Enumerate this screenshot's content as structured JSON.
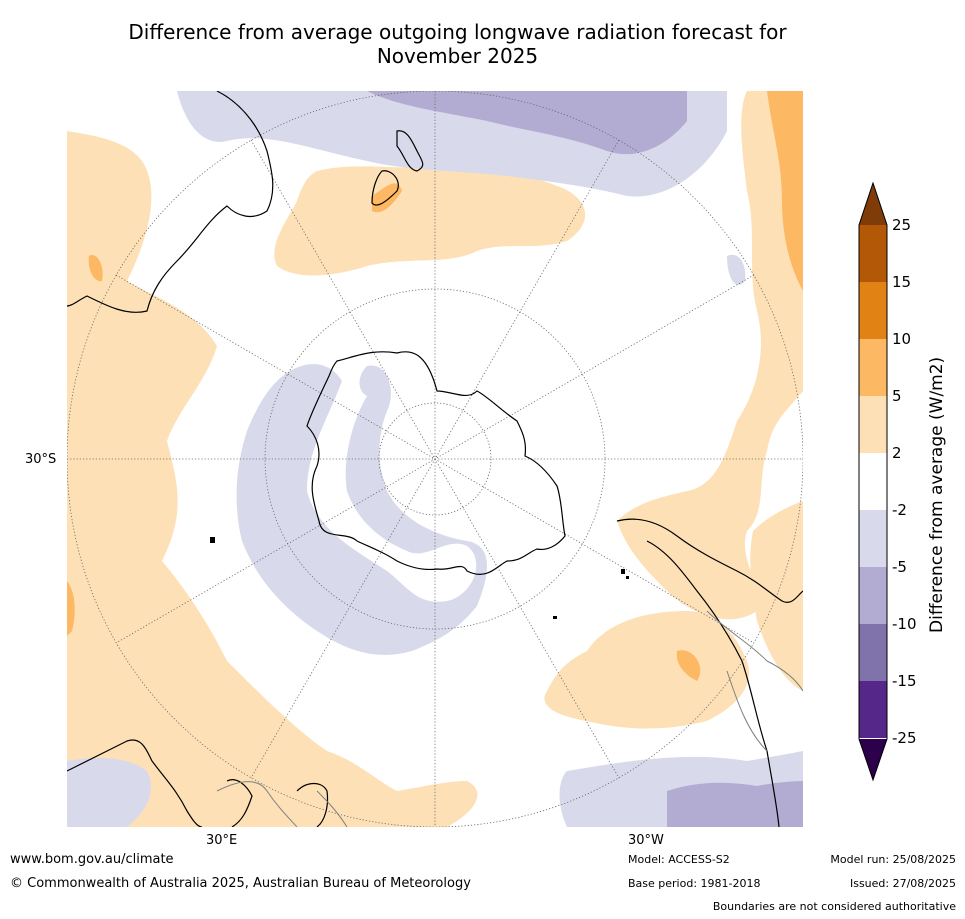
{
  "title": {
    "line1": "Difference from average outgoing longwave radiation forecast for",
    "line2": "November 2025"
  },
  "map": {
    "projection": "south-polar stereographic",
    "lat_label": "30°S",
    "lon_labels": [
      "30°E",
      "30°W"
    ],
    "colors": {
      "ocean_neutral": "#ffffff",
      "pos_2_5": "#fde0b6",
      "pos_5_10": "#fdb863",
      "pos_10_15": "#e08214",
      "pos_15_25": "#b35806",
      "pos_gt25": "#7f3b08",
      "neg_2_5": "#d8daeb",
      "neg_5_10": "#b2abd2",
      "neg_10_15": "#8073ac",
      "neg_15_25": "#542788",
      "neg_lt25": "#2d004b",
      "coastline": "#000000",
      "boundary": "#808080",
      "graticule": "#666666"
    }
  },
  "colorbar": {
    "label": "Difference from average (W/m2)",
    "ticks": [
      "25",
      "15",
      "10",
      "5",
      "2",
      "-2",
      "-5",
      "-10",
      "-15",
      "-25"
    ],
    "bins_top_to_bottom": [
      "#b35806",
      "#e08214",
      "#fdb863",
      "#fde0b6",
      "#ffffff",
      "#d8daeb",
      "#b2abd2",
      "#8073ac",
      "#542788"
    ],
    "top_arrow_color": "#7f3b08",
    "bottom_arrow_color": "#2d004b"
  },
  "footer": {
    "website": "www.bom.gov.au/climate",
    "copyright": "© Commonwealth of Australia 2025, Australian Bureau of Meteorology",
    "model": "Model: ACCESS-S2",
    "base_period": "Base period: 1981-2018",
    "model_run": "Model run: 25/08/2025",
    "issued": "Issued: 27/08/2025",
    "disclaimer": "Boundaries are not considered authoritative"
  }
}
